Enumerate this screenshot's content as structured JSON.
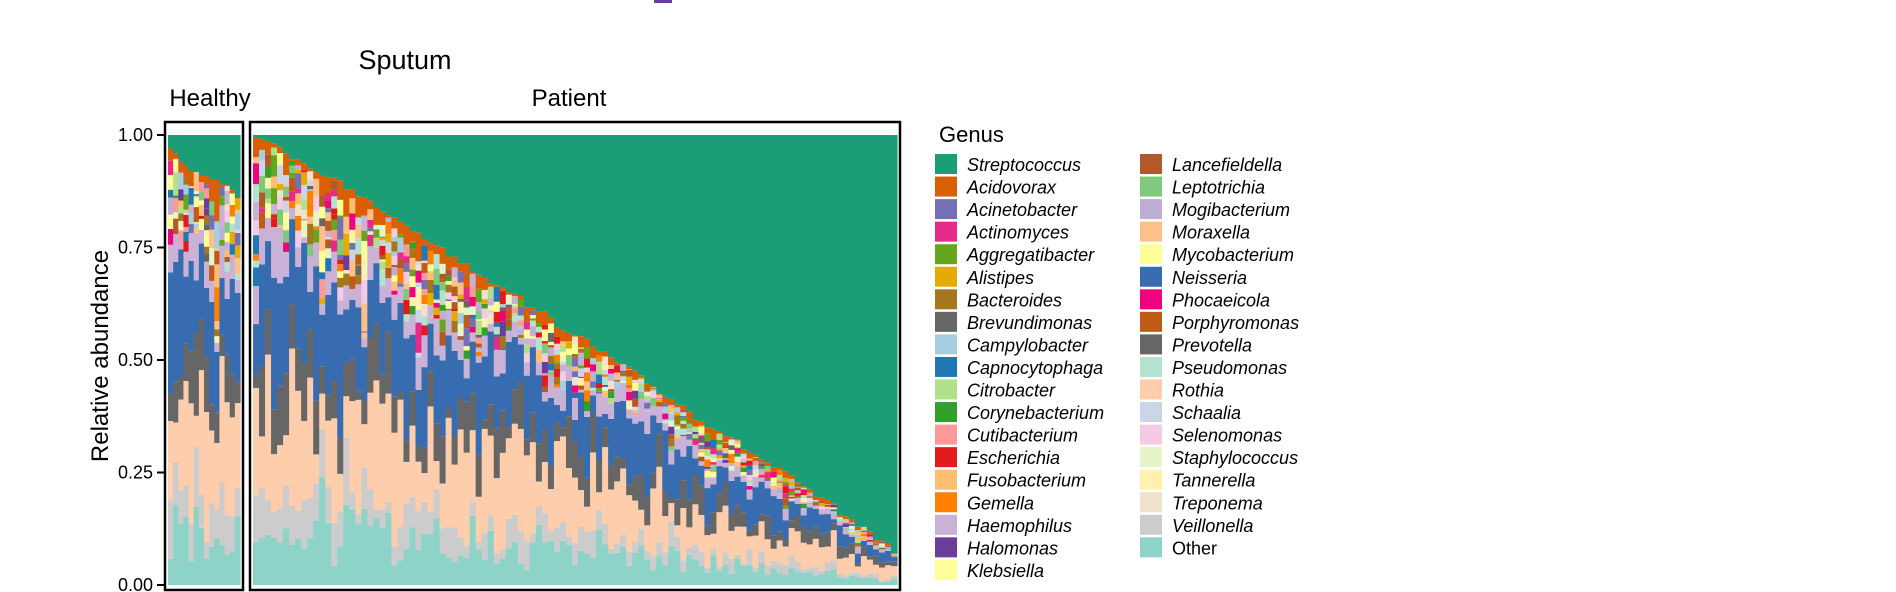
{
  "chart_data": {
    "type": "bar",
    "stacked": true,
    "title": "Sputum",
    "ylabel": "Relative abundance",
    "xlabel": "",
    "ylim": [
      0,
      1
    ],
    "yticks": [
      0.0,
      0.25,
      0.5,
      0.75,
      1.0
    ],
    "ytick_labels": [
      "0.00",
      "0.25",
      "0.50",
      "0.75",
      "1.00"
    ],
    "legend": {
      "title": "Genus",
      "placement": "right",
      "entries": [
        {
          "name": "Streptococcus",
          "color": "#1b9e77",
          "italic": true
        },
        {
          "name": "Acidovorax",
          "color": "#d95f02",
          "italic": true
        },
        {
          "name": "Acinetobacter",
          "color": "#7570b3",
          "italic": true
        },
        {
          "name": "Actinomyces",
          "color": "#e7298a",
          "italic": true
        },
        {
          "name": "Aggregatibacter",
          "color": "#66a61e",
          "italic": true
        },
        {
          "name": "Alistipes",
          "color": "#e6ab02",
          "italic": true
        },
        {
          "name": "Bacteroides",
          "color": "#a6761d",
          "italic": true
        },
        {
          "name": "Brevundimonas",
          "color": "#666666",
          "italic": true
        },
        {
          "name": "Campylobacter",
          "color": "#a6cee3",
          "italic": true
        },
        {
          "name": "Capnocytophaga",
          "color": "#1f78b4",
          "italic": true
        },
        {
          "name": "Citrobacter",
          "color": "#b2df8a",
          "italic": true
        },
        {
          "name": "Corynebacterium",
          "color": "#33a02c",
          "italic": true
        },
        {
          "name": "Cutibacterium",
          "color": "#fb9a99",
          "italic": true
        },
        {
          "name": "Escherichia",
          "color": "#e31a1c",
          "italic": true
        },
        {
          "name": "Fusobacterium",
          "color": "#fdbf6f",
          "italic": true
        },
        {
          "name": "Gemella",
          "color": "#ff7f00",
          "italic": true
        },
        {
          "name": "Haemophilus",
          "color": "#cab2d6",
          "italic": true
        },
        {
          "name": "Halomonas",
          "color": "#6a3d9a",
          "italic": true
        },
        {
          "name": "Klebsiella",
          "color": "#ffff99",
          "italic": true
        },
        {
          "name": "Lancefieldella",
          "color": "#b15928",
          "italic": true
        },
        {
          "name": "Leptotrichia",
          "color": "#7fc97f",
          "italic": true
        },
        {
          "name": "Mogibacterium",
          "color": "#beaed4",
          "italic": true
        },
        {
          "name": "Moraxella",
          "color": "#fdc086",
          "italic": true
        },
        {
          "name": "Mycobacterium",
          "color": "#ffff99",
          "italic": true
        },
        {
          "name": "Neisseria",
          "color": "#386cb0",
          "italic": true
        },
        {
          "name": "Phocaeicola",
          "color": "#f0027f",
          "italic": true
        },
        {
          "name": "Porphyromonas",
          "color": "#bf5b17",
          "italic": true
        },
        {
          "name": "Prevotella",
          "color": "#666666",
          "italic": true
        },
        {
          "name": "Pseudomonas",
          "color": "#b3e2cd",
          "italic": true
        },
        {
          "name": "Rothia",
          "color": "#fdcdac",
          "italic": true
        },
        {
          "name": "Schaalia",
          "color": "#cbd5e8",
          "italic": true
        },
        {
          "name": "Selenomonas",
          "color": "#f4cae4",
          "italic": true
        },
        {
          "name": "Staphylococcus",
          "color": "#e6f5c9",
          "italic": true
        },
        {
          "name": "Tannerella",
          "color": "#fff2ae",
          "italic": true
        },
        {
          "name": "Treponema",
          "color": "#f1e2cc",
          "italic": true
        },
        {
          "name": "Veillonella",
          "color": "#cccccc",
          "italic": true
        },
        {
          "name": "Other",
          "color": "#8dd3c7",
          "italic": false
        }
      ]
    },
    "facets": [
      {
        "label": "Healthy",
        "n_samples": 14
      },
      {
        "label": "Patient",
        "n_samples": 107
      }
    ],
    "top_genus": "Streptococcus",
    "healthy_streptococcus": [
      0.03,
      0.04,
      0.06,
      0.07,
      0.08,
      0.08,
      0.09,
      0.09,
      0.1,
      0.1,
      0.11,
      0.11,
      0.12,
      0.14
    ],
    "patient_streptococcus_range": [
      0.0,
      0.92
    ]
  }
}
